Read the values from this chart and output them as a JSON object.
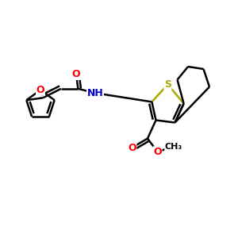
{
  "bg_color": "#ffffff",
  "bond_color": "#000000",
  "S_color": "#aaaa00",
  "O_color": "#ff0000",
  "N_color": "#0000cc",
  "line_width": 1.8,
  "figsize": [
    3.0,
    3.0
  ],
  "dpi": 100,
  "xlim": [
    0,
    10
  ],
  "ylim": [
    0,
    10
  ]
}
